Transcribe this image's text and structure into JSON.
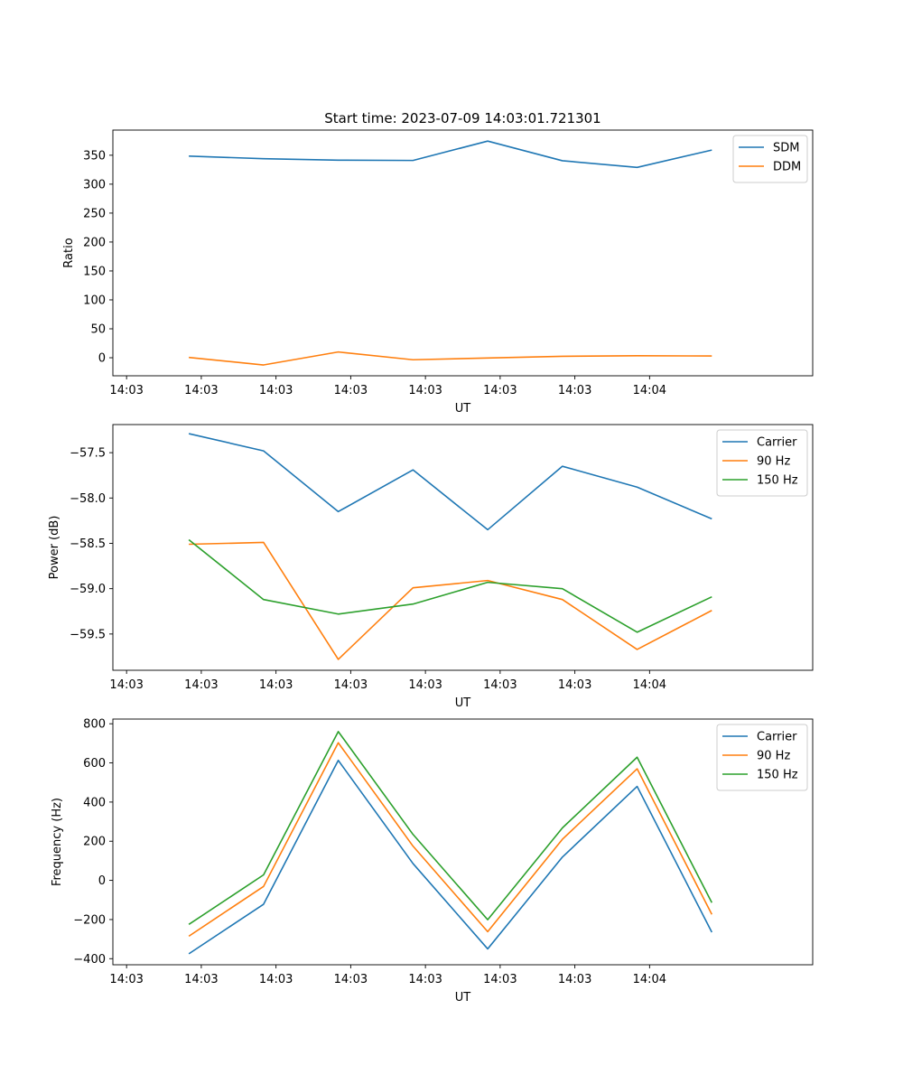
{
  "title": "Start time: 2023-07-09 14:03:01.721301",
  "colors": {
    "blue": "#1f77b4",
    "orange": "#ff7f0e",
    "green": "#2ca02c"
  },
  "chart_data": [
    {
      "type": "line",
      "title": "Start time: 2023-07-09 14:03:01.721301",
      "xlabel": "UT",
      "ylabel": "Ratio",
      "x_tick_labels": [
        "14:03",
        "14:03",
        "14:03",
        "14:03",
        "14:03",
        "14:03",
        "14:03"
      ],
      "x_tick_last_label": "14:04",
      "x_ticks": [
        0,
        3,
        6,
        9,
        12,
        15,
        18,
        21
      ],
      "x": [
        2.5,
        5.5,
        8.5,
        11.5,
        14.5,
        17.5,
        20.5,
        23.5
      ],
      "xlim": [
        -0.55,
        27.55
      ],
      "ylim": [
        -31.2,
        393.5
      ],
      "yticks": [
        0,
        50,
        100,
        150,
        200,
        250,
        300,
        350
      ],
      "ytick_labels": [
        "0",
        "50",
        "100",
        "150",
        "200",
        "250",
        "300",
        "350"
      ],
      "legend": "top-right",
      "series": [
        {
          "name": "SDM",
          "color": "#1f77b4",
          "values": [
            348.5,
            344,
            341.5,
            341,
            374.5,
            340.5,
            329,
            359
          ]
        },
        {
          "name": "DDM",
          "color": "#ff7f0e",
          "values": [
            0.5,
            -12.5,
            10,
            -3.5,
            -0.5,
            2.5,
            3.5,
            3
          ]
        }
      ]
    },
    {
      "type": "line",
      "title": "",
      "xlabel": "UT",
      "ylabel": "Power (dB)",
      "x_tick_labels": [
        "14:03",
        "14:03",
        "14:03",
        "14:03",
        "14:03",
        "14:03",
        "14:03"
      ],
      "x_tick_last_label": "14:04",
      "x_ticks": [
        0,
        3,
        6,
        9,
        12,
        15,
        18,
        21
      ],
      "x": [
        2.5,
        5.5,
        8.5,
        11.5,
        14.5,
        17.5,
        20.5,
        23.5
      ],
      "xlim": [
        -0.55,
        27.55
      ],
      "ylim": [
        -59.9,
        -57.19
      ],
      "yticks": [
        -57.5,
        -58.0,
        -58.5,
        -59.0,
        -59.5
      ],
      "ytick_labels": [
        "−57.5",
        "−58.0",
        "−58.5",
        "−59.0",
        "−59.5"
      ],
      "legend": "top-right",
      "series": [
        {
          "name": "Carrier",
          "color": "#1f77b4",
          "values": [
            -57.29,
            -57.48,
            -58.15,
            -57.69,
            -58.35,
            -57.65,
            -57.88,
            -58.23
          ]
        },
        {
          "name": "90 Hz",
          "color": "#ff7f0e",
          "values": [
            -58.51,
            -58.49,
            -59.78,
            -58.99,
            -58.91,
            -59.12,
            -59.67,
            -59.24
          ]
        },
        {
          "name": "150 Hz",
          "color": "#2ca02c",
          "values": [
            -58.46,
            -59.12,
            -59.28,
            -59.17,
            -58.93,
            -59.0,
            -59.48,
            -59.09
          ]
        }
      ]
    },
    {
      "type": "line",
      "title": "",
      "xlabel": "UT",
      "ylabel": "Frequency (Hz)",
      "x_tick_labels": [
        "14:03",
        "14:03",
        "14:03",
        "14:03",
        "14:03",
        "14:03",
        "14:03"
      ],
      "x_tick_last_label": "14:04",
      "x_ticks": [
        0,
        3,
        6,
        9,
        12,
        15,
        18,
        21
      ],
      "x": [
        2.5,
        5.5,
        8.5,
        11.5,
        14.5,
        17.5,
        20.5,
        23.5
      ],
      "xlim": [
        -0.55,
        27.55
      ],
      "ylim": [
        -431,
        824
      ],
      "yticks": [
        -400,
        -200,
        0,
        200,
        400,
        600,
        800
      ],
      "ytick_labels": [
        "−400",
        "−200",
        "0",
        "200",
        "400",
        "600",
        "800"
      ],
      "legend": "top-right",
      "series": [
        {
          "name": "Carrier",
          "color": "#1f77b4",
          "values": [
            -375,
            -122,
            613,
            86,
            -350,
            119,
            480,
            -265
          ]
        },
        {
          "name": "90 Hz",
          "color": "#ff7f0e",
          "values": [
            -285,
            -31,
            703,
            175,
            -262,
            210,
            570,
            -174
          ]
        },
        {
          "name": "150 Hz",
          "color": "#2ca02c",
          "values": [
            -225,
            28,
            760,
            235,
            -201,
            268,
            629,
            -114
          ]
        }
      ]
    }
  ]
}
